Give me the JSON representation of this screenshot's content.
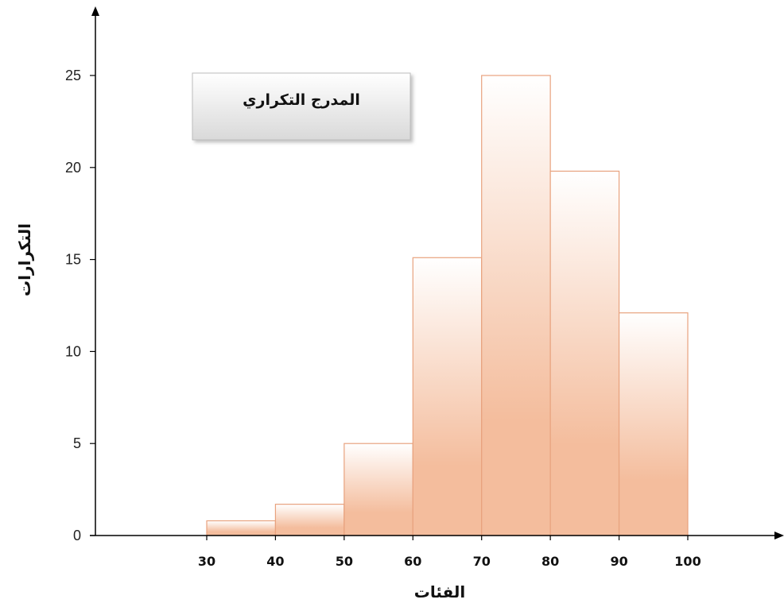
{
  "chart_data": {
    "type": "bar",
    "title": "المدرج التكراري",
    "xlabel": "الفئات",
    "ylabel": "التكرارات",
    "x_ticks": [
      "30",
      "40",
      "50",
      "60",
      "70",
      "80",
      "90",
      "100"
    ],
    "bins": [
      {
        "from": 30,
        "to": 40,
        "value": 0.8
      },
      {
        "from": 40,
        "to": 50,
        "value": 1.7
      },
      {
        "from": 50,
        "to": 60,
        "value": 5
      },
      {
        "from": 60,
        "to": 70,
        "value": 15.1
      },
      {
        "from": 70,
        "to": 80,
        "value": 25
      },
      {
        "from": 80,
        "to": 90,
        "value": 19.8
      },
      {
        "from": 90,
        "to": 100,
        "value": 12.1
      }
    ],
    "y_ticks": [
      "0",
      "5",
      "10",
      "15",
      "20",
      "25"
    ],
    "ylim": [
      0,
      25
    ],
    "xlim": [
      30,
      100
    ],
    "grid": false,
    "bar_color_top": "#ffffff",
    "bar_color_bottom": "#f4bd9d",
    "bar_border_color": "#e8a27e"
  }
}
